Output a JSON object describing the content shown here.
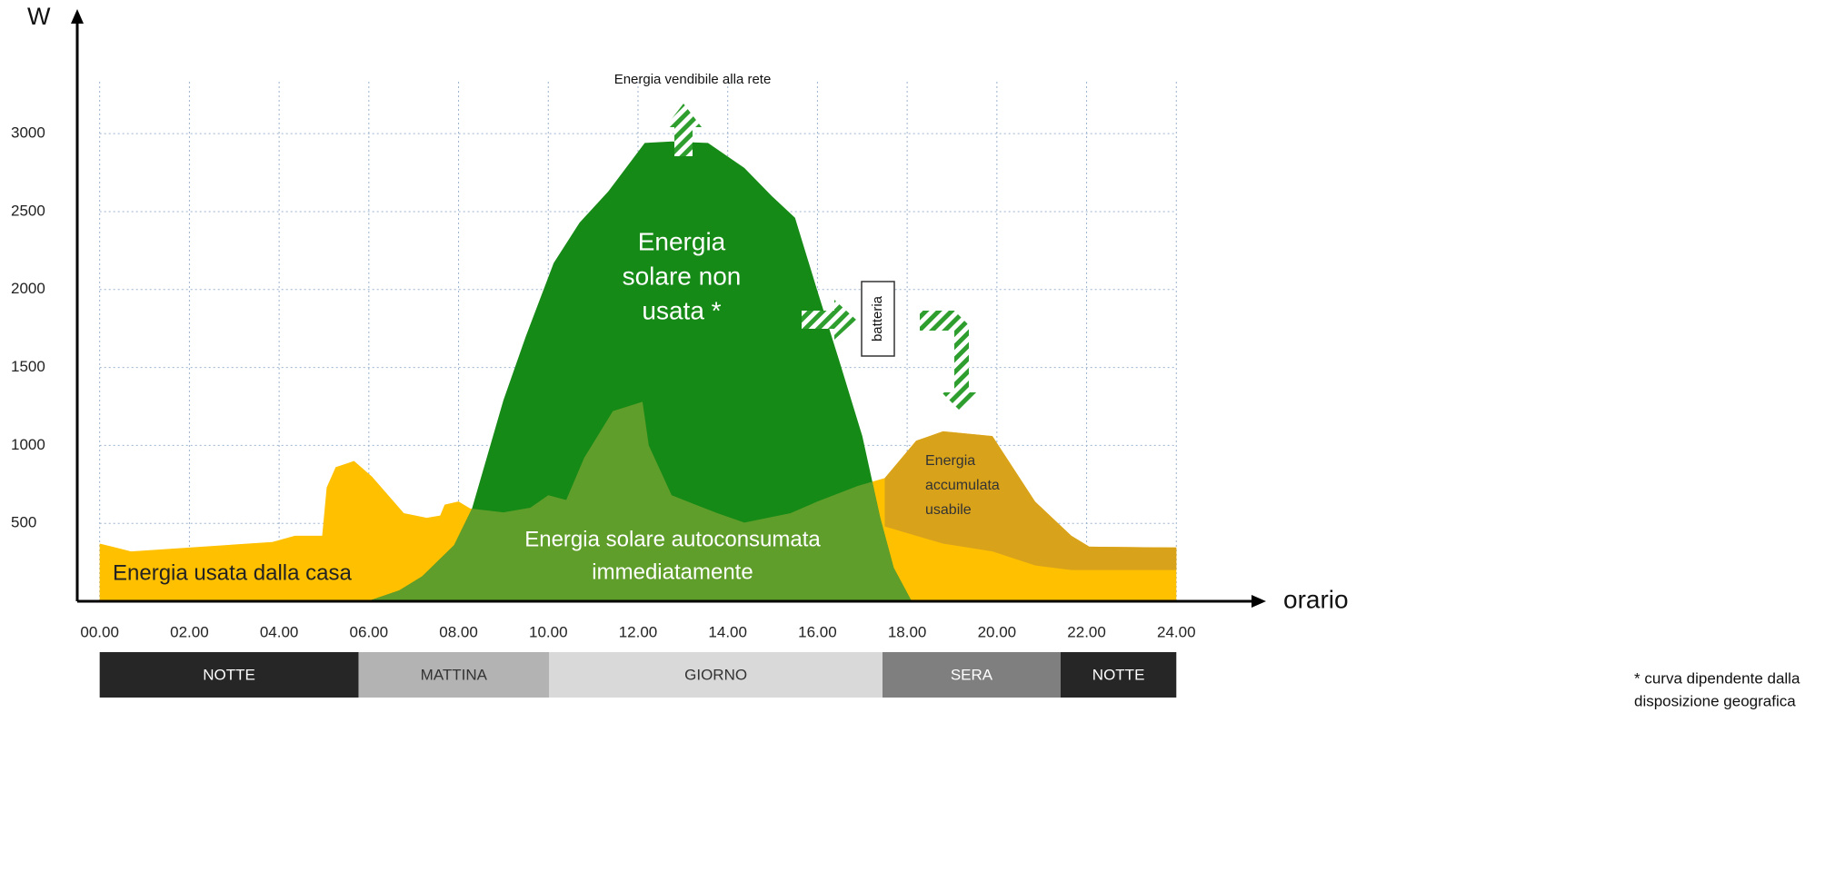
{
  "chart_data": {
    "type": "area",
    "x_axis_label": "orario",
    "y_axis_label": "W",
    "xlim": [
      -0.5,
      26
    ],
    "ylim": [
      0,
      3700
    ],
    "xticks": [
      {
        "value": 0,
        "label": "00.00"
      },
      {
        "value": 2,
        "label": "02.00"
      },
      {
        "value": 4,
        "label": "04.00"
      },
      {
        "value": 6,
        "label": "06.00"
      },
      {
        "value": 8,
        "label": "08.00"
      },
      {
        "value": 10,
        "label": "10.00"
      },
      {
        "value": 12,
        "label": "12.00"
      },
      {
        "value": 14,
        "label": "14.00"
      },
      {
        "value": 16,
        "label": "16.00"
      },
      {
        "value": 18,
        "label": "18.00"
      },
      {
        "value": 20,
        "label": "20.00"
      },
      {
        "value": 22,
        "label": "22.00"
      },
      {
        "value": 24,
        "label": "24.00"
      }
    ],
    "yticks": [
      500,
      1000,
      1500,
      2000,
      2500,
      3000
    ],
    "grid": true,
    "series": [
      {
        "name": [
          "Energia usata dalla casa"
        ],
        "color": "#ffc000",
        "x": [
          0,
          0.7,
          3.85,
          4.35,
          4.96,
          5.06,
          5.26,
          5.67,
          6.07,
          6.78,
          7.29,
          7.59,
          7.69,
          8.0,
          8.26,
          9.0,
          9.6,
          10.0,
          10.4,
          10.8,
          11.44,
          12.1,
          12.24,
          12.75,
          13.77,
          14.37,
          15.4,
          16.0,
          16.9,
          17.5,
          18.2,
          18.8,
          19.9,
          20.85,
          21.66,
          22.06,
          24
        ],
        "values": [
          370,
          320,
          380,
          420,
          420,
          730,
          860,
          900,
          800,
          565,
          535,
          550,
          620,
          640,
          595,
          570,
          600,
          680,
          650,
          920,
          1220,
          1280,
          1000,
          680,
          565,
          505,
          565,
          640,
          740,
          790,
          1030,
          1090,
          1060,
          640,
          420,
          350,
          345
        ]
      },
      {
        "name": [
          "Energia",
          "solare non",
          "usata *"
        ],
        "color": "#168a16",
        "x": [
          5.97,
          6.68,
          7.19,
          7.9,
          8.3,
          9.0,
          9.5,
          10.12,
          10.7,
          11.34,
          12.15,
          12.75,
          13.56,
          14.37,
          14.98,
          15.5,
          16.0,
          16.5,
          17.0,
          17.4,
          17.7,
          18.1
        ],
        "values": [
          0,
          70,
          160,
          360,
          595,
          1290,
          1700,
          2170,
          2430,
          2630,
          2940,
          2950,
          2940,
          2780,
          2600,
          2460,
          1990,
          1530,
          1060,
          535,
          215,
          0
        ]
      },
      {
        "name": [
          "Energia solare autoconsumata",
          "immediatamente"
        ],
        "color": "#5f9e2b",
        "overlap_of": [
          0,
          1
        ]
      },
      {
        "name": [
          "Energia",
          "accumulata",
          "usabile"
        ],
        "color": "#d9a21b",
        "x": [
          17.5,
          18.2,
          18.8,
          19.9,
          20.85,
          21.66,
          22.06,
          24
        ],
        "values": [
          310,
          610,
          720,
          740,
          410,
          220,
          150,
          145
        ]
      }
    ],
    "annotations": [
      {
        "text": "Energia vendibile alla rete"
      },
      {
        "text": "batteria"
      }
    ],
    "periods": [
      {
        "label": "NOTTE",
        "start": 0,
        "end": 5.77,
        "color": "#262626",
        "text_color": "#ffffff"
      },
      {
        "label": "MATTINA",
        "start": 5.77,
        "end": 10.02,
        "color": "#b3b3b3",
        "text_color": "#333333"
      },
      {
        "label": "GIORNO",
        "start": 10.02,
        "end": 17.45,
        "color": "#d9d9d9",
        "text_color": "#333333"
      },
      {
        "label": "SERA",
        "start": 17.45,
        "end": 21.42,
        "color": "#7f7f7f",
        "text_color": "#ffffff"
      },
      {
        "label": "NOTTE",
        "start": 21.42,
        "end": 24,
        "color": "#262626",
        "text_color": "#ffffff"
      }
    ],
    "note": [
      "* curva dipendente dalla",
      "disposizione geografica"
    ]
  }
}
